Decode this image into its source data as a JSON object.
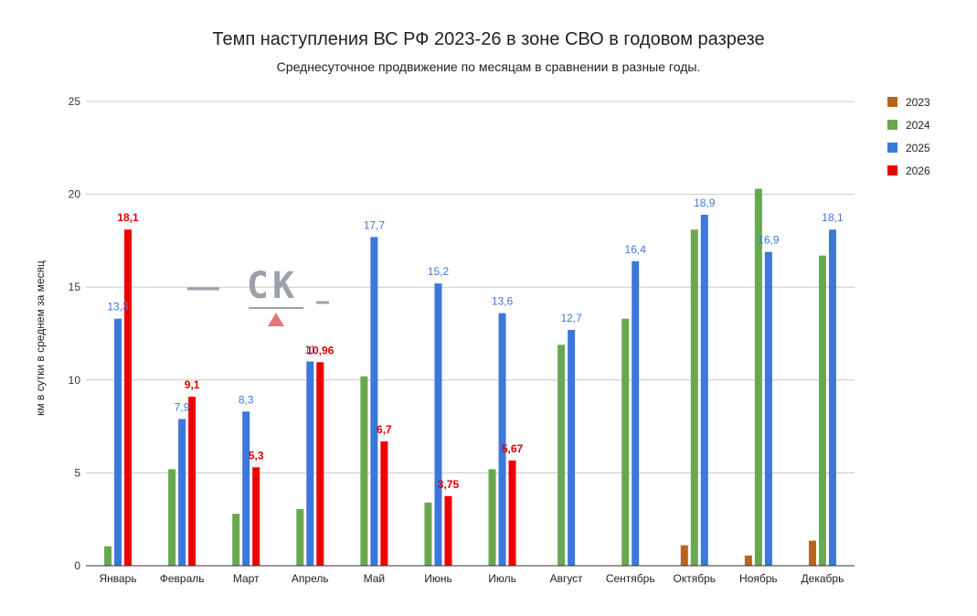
{
  "chart_data": {
    "type": "bar",
    "title": "Темп наступления ВС РФ 2023-26 в зоне СВО в годовом разрезе",
    "subtitle": "Среднесуточное продвижение по месяцам в сравнении в разные годы.",
    "ylabel": "км в сутки в среднем за месяц",
    "xlabel": "",
    "ylim": [
      0,
      25
    ],
    "yticks": [
      0,
      5,
      10,
      15,
      20,
      25
    ],
    "grid": true,
    "legend_position": "right",
    "categories": [
      "Январь",
      "Февраль",
      "Март",
      "Апрель",
      "Май",
      "Июнь",
      "Июль",
      "Август",
      "Сентябрь",
      "Октябрь",
      "Ноябрь",
      "Декабрь"
    ],
    "series": [
      {
        "name": "2023",
        "color": "#b5651d",
        "values": [
          null,
          null,
          null,
          null,
          null,
          null,
          null,
          null,
          null,
          1.1,
          0.55,
          1.35
        ],
        "labels": [
          null,
          null,
          null,
          null,
          null,
          null,
          null,
          null,
          null,
          null,
          null,
          null
        ]
      },
      {
        "name": "2024",
        "color": "#6aa84f",
        "values": [
          1.05,
          5.2,
          2.8,
          3.05,
          10.2,
          3.4,
          5.2,
          11.9,
          13.3,
          18.1,
          20.3,
          16.7
        ],
        "labels": [
          null,
          null,
          null,
          null,
          null,
          null,
          null,
          null,
          null,
          null,
          null,
          null
        ]
      },
      {
        "name": "2025",
        "color": "#3c78d8",
        "values": [
          13.3,
          7.9,
          8.3,
          11.0,
          17.7,
          15.2,
          13.6,
          12.7,
          16.4,
          18.9,
          16.9,
          18.1
        ],
        "labels": [
          "13,3",
          "7,9",
          "8,3",
          "11",
          "17,7",
          "15,2",
          "13,6",
          "12,7",
          "16,4",
          "18,9",
          "16,9",
          "18,1"
        ]
      },
      {
        "name": "2026",
        "color": "#ee0000",
        "values": [
          18.1,
          9.1,
          5.3,
          10.96,
          6.7,
          3.75,
          5.67,
          null,
          null,
          null,
          null,
          null
        ],
        "labels": [
          "18,1",
          "9,1",
          "5,3",
          "10,96",
          "6,7",
          "3,75",
          "5,67",
          null,
          null,
          null,
          null,
          null
        ]
      }
    ]
  },
  "watermark": {
    "text": "СК",
    "color": "#9aa1aa",
    "accent_color": "#e07a7a"
  }
}
